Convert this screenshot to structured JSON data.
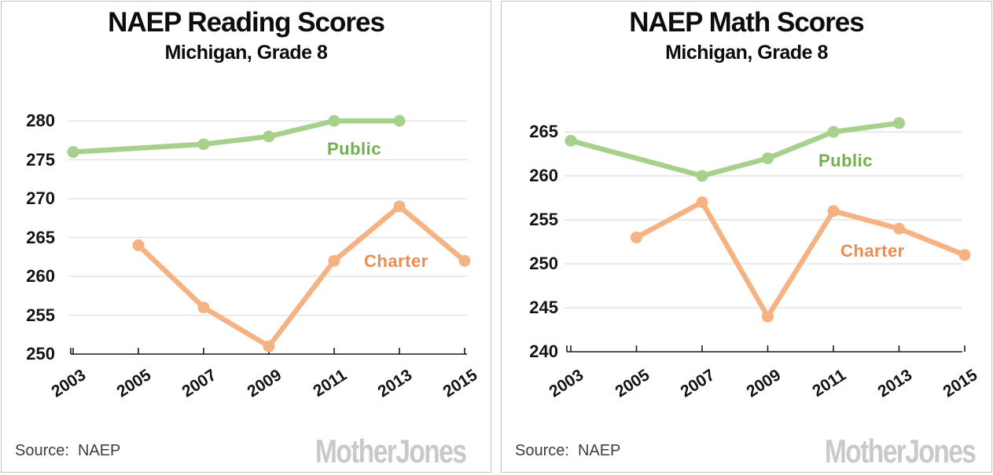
{
  "colors": {
    "public_line": "#a6d08c",
    "public_label": "#6fb14c",
    "charter_line": "#f5b383",
    "charter_label": "#ed8c4d",
    "grid": "#e3e3e3",
    "axis": "#1a1a1a",
    "axis_text": "#141414",
    "source_text": "#3d3d3d",
    "watermark": "#c9c9c9",
    "panel_border": "#c2c2c2"
  },
  "charts": [
    {
      "title": "NAEP Reading Scores",
      "subtitle": "Michigan, Grade 8",
      "source_label": "Source:",
      "source_value": "NAEP",
      "watermark": "MotherJones"
    },
    {
      "title": "NAEP Math Scores",
      "subtitle": "Michigan, Grade 8",
      "source_label": "Source:",
      "source_value": "NAEP",
      "watermark": "MotherJones"
    }
  ],
  "chart_data": [
    {
      "type": "line",
      "title": "NAEP Reading Scores",
      "subtitle": "Michigan, Grade 8",
      "xlabel": "",
      "ylabel": "",
      "x_ticks": [
        "2003",
        "2005",
        "2007",
        "2009",
        "2011",
        "2013",
        "2015"
      ],
      "y_ticks": [
        250,
        255,
        260,
        265,
        270,
        275,
        280
      ],
      "ylim": [
        250,
        280
      ],
      "grid": true,
      "legend_position": "inline-labels",
      "series": [
        {
          "name": "Public",
          "color": "#a6d08c",
          "label_color": "#6fb14c",
          "points": [
            [
              "2003",
              276
            ],
            [
              "2007",
              277
            ],
            [
              "2009",
              278
            ],
            [
              "2011",
              280
            ],
            [
              "2013",
              280
            ]
          ]
        },
        {
          "name": "Charter",
          "color": "#f5b383",
          "label_color": "#ed8c4d",
          "points": [
            [
              "2005",
              264
            ],
            [
              "2007",
              256
            ],
            [
              "2009",
              251
            ],
            [
              "2011",
              262
            ],
            [
              "2013",
              269
            ],
            [
              "2015",
              262
            ]
          ]
        }
      ]
    },
    {
      "type": "line",
      "title": "NAEP Math Scores",
      "subtitle": "Michigan, Grade 8",
      "xlabel": "",
      "ylabel": "",
      "x_ticks": [
        "2003",
        "2005",
        "2007",
        "2009",
        "2011",
        "2013",
        "2015"
      ],
      "y_ticks": [
        240,
        245,
        250,
        255,
        260,
        265
      ],
      "ylim": [
        240,
        265
      ],
      "grid": true,
      "legend_position": "inline-labels",
      "series": [
        {
          "name": "Public",
          "color": "#a6d08c",
          "label_color": "#6fb14c",
          "points": [
            [
              "2003",
              264
            ],
            [
              "2007",
              260
            ],
            [
              "2009",
              262
            ],
            [
              "2011",
              265
            ],
            [
              "2013",
              266
            ]
          ]
        },
        {
          "name": "Charter",
          "color": "#f5b383",
          "label_color": "#ed8c4d",
          "points": [
            [
              "2005",
              253
            ],
            [
              "2007",
              257
            ],
            [
              "2009",
              244
            ],
            [
              "2011",
              256
            ],
            [
              "2013",
              254
            ],
            [
              "2015",
              251
            ]
          ]
        }
      ]
    }
  ]
}
